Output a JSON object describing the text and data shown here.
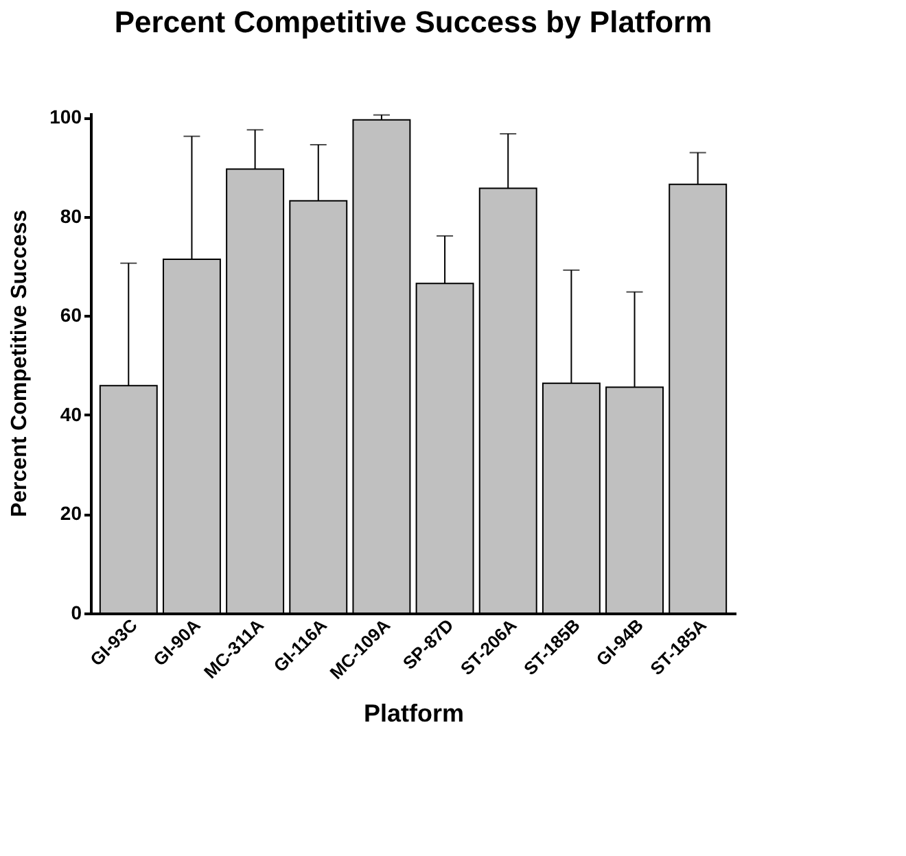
{
  "chart_data": {
    "type": "bar",
    "title": "Percent Competitive Success by Platform",
    "xlabel": "Platform",
    "ylabel": "Percent Competitive Success",
    "categories": [
      "GI-93C",
      "GI-90A",
      "MC-311A",
      "GI-116A",
      "MC-109A",
      "SP-87D",
      "ST-206A",
      "ST-185B",
      "GI-94B",
      "ST-185A"
    ],
    "values": [
      45.9,
      71.4,
      89.6,
      83.2,
      99.5,
      66.5,
      85.7,
      46.4,
      45.6,
      86.5
    ],
    "errors": [
      [
        45.9,
        70.6
      ],
      [
        71.4,
        96.2
      ],
      [
        89.6,
        97.5
      ],
      [
        83.2,
        94.5
      ],
      [
        99.5,
        100.5
      ],
      [
        66.5,
        76.1
      ],
      [
        85.7,
        96.7
      ],
      [
        46.4,
        69.2
      ],
      [
        45.6,
        64.8
      ],
      [
        86.5,
        92.9
      ]
    ],
    "color": "#c0c0c0",
    "ylim": [
      0,
      101
    ],
    "yticks": [
      0,
      20,
      40,
      60,
      80,
      100
    ],
    "grid": false
  }
}
